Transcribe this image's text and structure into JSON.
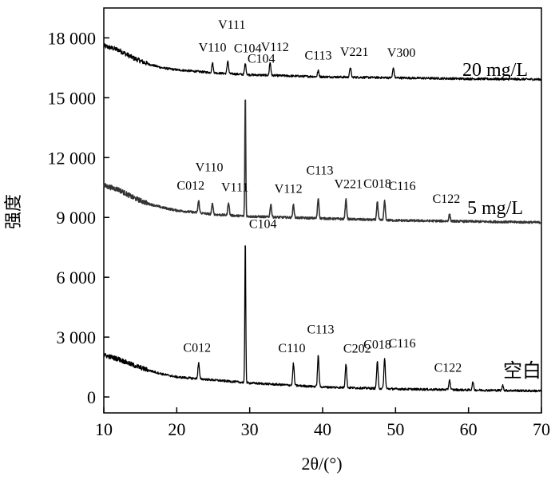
{
  "chart_data": {
    "type": "line",
    "title": "",
    "xlabel": "2θ/(°)",
    "ylabel": "强度",
    "xlim": [
      10,
      70
    ],
    "ylim": [
      -800,
      19500
    ],
    "xticks": [
      10,
      20,
      30,
      40,
      50,
      60,
      70
    ],
    "xtick_labels": [
      "10",
      "20",
      "30",
      "40",
      "50",
      "60",
      "70"
    ],
    "yticks": [
      0,
      3000,
      6000,
      9000,
      12000,
      15000,
      18000
    ],
    "ytick_labels": [
      "0",
      "3 000",
      "6 000",
      "9 000",
      "12 000",
      "15 000",
      "18 000"
    ],
    "grid": false,
    "legend": "none",
    "series": [
      {
        "name": "20 mg/L",
        "stroke": "#000000",
        "baseline": [
          [
            10,
            17600
          ],
          [
            12,
            17400
          ],
          [
            14,
            17000
          ],
          [
            16,
            16700
          ],
          [
            18,
            16500
          ],
          [
            20,
            16400
          ],
          [
            25,
            16250
          ],
          [
            30,
            16150
          ],
          [
            35,
            16100
          ],
          [
            40,
            16050
          ],
          [
            50,
            16000
          ],
          [
            60,
            15950
          ],
          [
            70,
            15920
          ]
        ],
        "peaks": [
          {
            "x": 24.9,
            "height": 500,
            "label": "V110"
          },
          {
            "x": 27.0,
            "height": 650,
            "label": "V111"
          },
          {
            "x": 29.4,
            "height": 550,
            "label": "C104"
          },
          {
            "x": 32.8,
            "height": 650,
            "label": "V112"
          },
          {
            "x": 39.4,
            "height": 300,
            "label": "C113"
          },
          {
            "x": 43.8,
            "height": 500,
            "label": "V221"
          },
          {
            "x": 49.7,
            "height": 500,
            "label": "V300"
          }
        ]
      },
      {
        "name": "5 mg/L",
        "stroke": "#333333",
        "baseline": [
          [
            10,
            10600
          ],
          [
            12,
            10400
          ],
          [
            14,
            10000
          ],
          [
            16,
            9700
          ],
          [
            18,
            9500
          ],
          [
            20,
            9350
          ],
          [
            25,
            9150
          ],
          [
            30,
            9050
          ],
          [
            35,
            9000
          ],
          [
            40,
            8950
          ],
          [
            50,
            8850
          ],
          [
            60,
            8800
          ],
          [
            70,
            8750
          ]
        ],
        "peaks": [
          {
            "x": 23.0,
            "height": 600,
            "label": "C012"
          },
          {
            "x": 24.9,
            "height": 550,
            "label": "V110"
          },
          {
            "x": 27.1,
            "height": 650,
            "label": "V111"
          },
          {
            "x": 29.4,
            "height": 6100,
            "label": "C104"
          },
          {
            "x": 32.9,
            "height": 650,
            "label": "V112"
          },
          {
            "x": 36.0,
            "height": 650,
            "label": ""
          },
          {
            "x": 39.4,
            "height": 1000,
            "label": "C113"
          },
          {
            "x": 43.2,
            "height": 1000,
            "label": "V221"
          },
          {
            "x": 47.5,
            "height": 900,
            "label": "C018"
          },
          {
            "x": 48.5,
            "height": 950,
            "label": "C116"
          },
          {
            "x": 57.4,
            "height": 350,
            "label": "C122"
          }
        ]
      },
      {
        "name": "空白",
        "stroke": "#000000",
        "baseline": [
          [
            10,
            2100
          ],
          [
            12,
            1900
          ],
          [
            14,
            1600
          ],
          [
            16,
            1350
          ],
          [
            18,
            1150
          ],
          [
            20,
            1000
          ],
          [
            25,
            850
          ],
          [
            30,
            700
          ],
          [
            35,
            600
          ],
          [
            40,
            500
          ],
          [
            50,
            400
          ],
          [
            60,
            350
          ],
          [
            70,
            300
          ]
        ],
        "peaks": [
          {
            "x": 23.0,
            "height": 800,
            "label": "C012"
          },
          {
            "x": 29.4,
            "height": 7200,
            "label": "C104"
          },
          {
            "x": 36.0,
            "height": 1100,
            "label": "C110"
          },
          {
            "x": 39.4,
            "height": 1550,
            "label": "C113"
          },
          {
            "x": 43.2,
            "height": 1200,
            "label": "C202"
          },
          {
            "x": 47.5,
            "height": 1350,
            "label": "C018"
          },
          {
            "x": 48.5,
            "height": 1500,
            "label": "C116"
          },
          {
            "x": 57.4,
            "height": 500,
            "label": "C122"
          },
          {
            "x": 60.6,
            "height": 400,
            "label": ""
          },
          {
            "x": 64.7,
            "height": 250,
            "label": ""
          }
        ]
      }
    ]
  }
}
